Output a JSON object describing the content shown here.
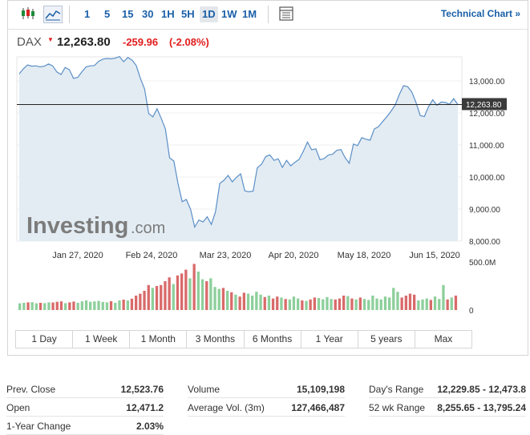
{
  "toolbar": {
    "periods": [
      "1",
      "5",
      "15",
      "30",
      "1H",
      "5H",
      "1D",
      "1W",
      "1M"
    ],
    "active_period": "1D",
    "technical_chart_label": "Technical Chart",
    "technical_chart_arrow": "»",
    "icons": [
      "candlestick-chart-icon",
      "area-chart-icon",
      "table-view-icon"
    ]
  },
  "quote": {
    "symbol": "DAX",
    "direction_glyph": "▼",
    "price": "12,263.80",
    "change": "-259.96",
    "change_pct": "(-2.08%)",
    "negative_color": "#e21c1c"
  },
  "watermark": {
    "brand": "Investing",
    "suffix": ".com"
  },
  "chart_data": {
    "type": "area",
    "y_axis": {
      "ticks": [
        "13,000.00",
        "12,000.00",
        "11,000.00",
        "10,000.00",
        "9,000.00",
        "8,000.00"
      ],
      "tick_values": [
        13000,
        12000,
        11000,
        10000,
        9000,
        8000
      ],
      "ylim": [
        8000,
        13750
      ],
      "position": "right"
    },
    "x_axis": {
      "labels": [
        "Jan 27, 2020",
        "Feb 24, 2020",
        "Mar 23, 2020",
        "Apr 20, 2020",
        "May 18, 2020",
        "Jun 15, 2020"
      ]
    },
    "last_value_label": "12,263.80",
    "last_value": 12263.8,
    "colors": {
      "line": "#5b8fc7",
      "fill": "#e3ecf3",
      "up_bar": "#8dcf9b",
      "down_bar": "#d96a6a"
    },
    "price_series": [
      13220,
      13380,
      13500,
      13460,
      13470,
      13440,
      13460,
      13530,
      13470,
      13280,
      13200,
      13420,
      13350,
      13080,
      13110,
      13280,
      13440,
      13470,
      13480,
      13610,
      13680,
      13700,
      13690,
      13710,
      13760,
      13600,
      13730,
      13650,
      13480,
      13080,
      12750,
      11980,
      11880,
      12130,
      11830,
      11500,
      10600,
      10500,
      9800,
      9230,
      9300,
      9000,
      8440,
      8660,
      8600,
      8760,
      8520,
      8920,
      9800,
      9900,
      10050,
      9850,
      9990,
      10100,
      9570,
      9540,
      9560,
      10290,
      10400,
      10640,
      10690,
      10520,
      10570,
      10300,
      10520,
      10350,
      10460,
      10550,
      10800,
      11090,
      10850,
      10880,
      10540,
      10580,
      10690,
      10710,
      10830,
      10860,
      10610,
      10430,
      11030,
      10980,
      11230,
      11180,
      11150,
      11500,
      11570,
      11730,
      11880,
      12050,
      12250,
      12580,
      12850,
      12820,
      12650,
      12320,
      11920,
      11890,
      12200,
      12410,
      12240,
      12340,
      12330,
      12270,
      12450,
      12264
    ],
    "volume_axis": {
      "ticks": [
        "500.0M",
        "0"
      ],
      "tick_values": [
        500,
        0
      ],
      "unit": "M"
    },
    "volume_series": [
      {
        "v": 70,
        "up": true
      },
      {
        "v": 75,
        "up": true
      },
      {
        "v": 80,
        "up": false
      },
      {
        "v": 82,
        "up": true
      },
      {
        "v": 70,
        "up": true
      },
      {
        "v": 75,
        "up": false
      },
      {
        "v": 72,
        "up": true
      },
      {
        "v": 80,
        "up": true
      },
      {
        "v": 78,
        "up": false
      },
      {
        "v": 86,
        "up": false
      },
      {
        "v": 90,
        "up": false
      },
      {
        "v": 72,
        "up": true
      },
      {
        "v": 80,
        "up": false
      },
      {
        "v": 88,
        "up": false
      },
      {
        "v": 76,
        "up": true
      },
      {
        "v": 90,
        "up": true
      },
      {
        "v": 100,
        "up": true
      },
      {
        "v": 86,
        "up": true
      },
      {
        "v": 90,
        "up": true
      },
      {
        "v": 95,
        "up": true
      },
      {
        "v": 84,
        "up": true
      },
      {
        "v": 80,
        "up": true
      },
      {
        "v": 92,
        "up": false
      },
      {
        "v": 76,
        "up": true
      },
      {
        "v": 100,
        "up": true
      },
      {
        "v": 108,
        "up": false
      },
      {
        "v": 100,
        "up": true
      },
      {
        "v": 118,
        "up": false
      },
      {
        "v": 150,
        "up": false
      },
      {
        "v": 170,
        "up": false
      },
      {
        "v": 200,
        "up": false
      },
      {
        "v": 260,
        "up": false
      },
      {
        "v": 230,
        "up": true
      },
      {
        "v": 250,
        "up": false
      },
      {
        "v": 260,
        "up": false
      },
      {
        "v": 300,
        "up": false
      },
      {
        "v": 340,
        "up": false
      },
      {
        "v": 270,
        "up": true
      },
      {
        "v": 360,
        "up": false
      },
      {
        "v": 380,
        "up": false
      },
      {
        "v": 420,
        "up": false
      },
      {
        "v": 330,
        "up": true
      },
      {
        "v": 480,
        "up": false
      },
      {
        "v": 400,
        "up": true
      },
      {
        "v": 320,
        "up": true
      },
      {
        "v": 300,
        "up": false
      },
      {
        "v": 330,
        "up": true
      },
      {
        "v": 240,
        "up": true
      },
      {
        "v": 220,
        "up": true
      },
      {
        "v": 230,
        "up": false
      },
      {
        "v": 200,
        "up": true
      },
      {
        "v": 185,
        "up": false
      },
      {
        "v": 160,
        "up": true
      },
      {
        "v": 140,
        "up": false
      },
      {
        "v": 180,
        "up": false
      },
      {
        "v": 170,
        "up": true
      },
      {
        "v": 150,
        "up": true
      },
      {
        "v": 190,
        "up": true
      },
      {
        "v": 160,
        "up": true
      },
      {
        "v": 135,
        "up": false
      },
      {
        "v": 150,
        "up": true
      },
      {
        "v": 120,
        "up": false
      },
      {
        "v": 140,
        "up": false
      },
      {
        "v": 130,
        "up": true
      },
      {
        "v": 115,
        "up": false
      },
      {
        "v": 110,
        "up": true
      },
      {
        "v": 140,
        "up": true
      },
      {
        "v": 120,
        "up": true
      },
      {
        "v": 100,
        "up": false
      },
      {
        "v": 95,
        "up": true
      },
      {
        "v": 110,
        "up": false
      },
      {
        "v": 130,
        "up": false
      },
      {
        "v": 125,
        "up": true
      },
      {
        "v": 112,
        "up": true
      },
      {
        "v": 135,
        "up": true
      },
      {
        "v": 115,
        "up": true
      },
      {
        "v": 110,
        "up": false
      },
      {
        "v": 120,
        "up": false
      },
      {
        "v": 150,
        "up": false
      },
      {
        "v": 145,
        "up": true
      },
      {
        "v": 120,
        "up": false
      },
      {
        "v": 110,
        "up": true
      },
      {
        "v": 130,
        "up": false
      },
      {
        "v": 115,
        "up": true
      },
      {
        "v": 105,
        "up": true
      },
      {
        "v": 150,
        "up": true
      },
      {
        "v": 120,
        "up": true
      },
      {
        "v": 110,
        "up": true
      },
      {
        "v": 140,
        "up": true
      },
      {
        "v": 130,
        "up": true
      },
      {
        "v": 230,
        "up": true
      },
      {
        "v": 190,
        "up": true
      },
      {
        "v": 130,
        "up": false
      },
      {
        "v": 150,
        "up": false
      },
      {
        "v": 170,
        "up": false
      },
      {
        "v": 160,
        "up": false
      },
      {
        "v": 100,
        "up": true
      },
      {
        "v": 110,
        "up": true
      },
      {
        "v": 120,
        "up": true
      },
      {
        "v": 105,
        "up": false
      },
      {
        "v": 140,
        "up": true
      },
      {
        "v": 115,
        "up": true
      },
      {
        "v": 260,
        "up": true
      },
      {
        "v": 110,
        "up": false
      },
      {
        "v": 130,
        "up": true
      },
      {
        "v": 150,
        "up": false
      }
    ]
  },
  "range_buttons": [
    "1 Day",
    "1 Week",
    "1 Month",
    "3 Months",
    "6 Months",
    "1 Year",
    "5 years",
    "Max"
  ],
  "stats": {
    "col1": [
      {
        "label": "Prev. Close",
        "value": "12,523.76"
      },
      {
        "label": "Open",
        "value": "12,471.2"
      },
      {
        "label": "1-Year Change",
        "value": "2.03%"
      }
    ],
    "col2": [
      {
        "label": "Volume",
        "value": "15,109,198"
      },
      {
        "label": "Average Vol. (3m)",
        "value": "127,466,487"
      }
    ],
    "col3": [
      {
        "label": "Day's Range",
        "value": "12,229.85 - 12,473.8"
      },
      {
        "label": "52 wk Range",
        "value": "8,255.65 - 13,795.24"
      }
    ]
  }
}
